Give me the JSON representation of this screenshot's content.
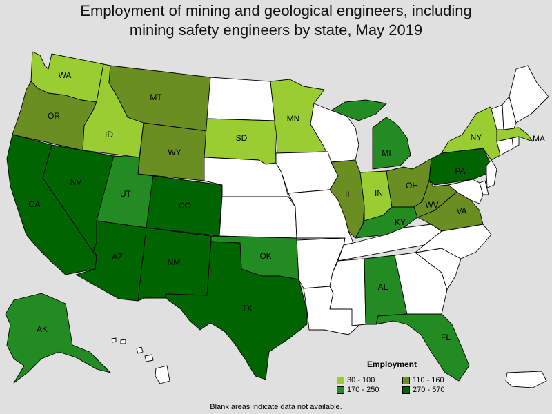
{
  "title_line1": "Employment of mining and geological engineers, including",
  "title_line2": "mining safety engineers by state, May 2019",
  "legend": {
    "title": "Employment",
    "items": [
      {
        "label": "30 - 100",
        "color": "#9acd32"
      },
      {
        "label": "110 - 160",
        "color": "#6b8e23"
      },
      {
        "label": "170 - 250",
        "color": "#228b22"
      },
      {
        "label": "270 - 570",
        "color": "#006400"
      }
    ]
  },
  "note": "Blank areas indicate data not available.",
  "colors": {
    "blank": "#ffffff",
    "c1": "#9acd32",
    "c2": "#6b8e23",
    "c3": "#228b22",
    "c4": "#006400",
    "background": "#e0e0e0"
  },
  "states": [
    {
      "abbr": "WA",
      "cls": "c1"
    },
    {
      "abbr": "OR",
      "cls": "c2"
    },
    {
      "abbr": "CA",
      "cls": "c4"
    },
    {
      "abbr": "ID",
      "cls": "c1"
    },
    {
      "abbr": "NV",
      "cls": "c4"
    },
    {
      "abbr": "MT",
      "cls": "c2"
    },
    {
      "abbr": "WY",
      "cls": "c2"
    },
    {
      "abbr": "UT",
      "cls": "c3"
    },
    {
      "abbr": "AZ",
      "cls": "c4"
    },
    {
      "abbr": "CO",
      "cls": "c4"
    },
    {
      "abbr": "NM",
      "cls": "c4"
    },
    {
      "abbr": "TX",
      "cls": "c4"
    },
    {
      "abbr": "OK",
      "cls": "c3"
    },
    {
      "abbr": "SD",
      "cls": "c1"
    },
    {
      "abbr": "MN",
      "cls": "c1"
    },
    {
      "abbr": "IL",
      "cls": "c2"
    },
    {
      "abbr": "IN",
      "cls": "c1"
    },
    {
      "abbr": "MI",
      "cls": "c3"
    },
    {
      "abbr": "OH",
      "cls": "c2"
    },
    {
      "abbr": "KY",
      "cls": "c3"
    },
    {
      "abbr": "WV",
      "cls": "c2"
    },
    {
      "abbr": "VA",
      "cls": "c2"
    },
    {
      "abbr": "PA",
      "cls": "c4"
    },
    {
      "abbr": "NY",
      "cls": "c1"
    },
    {
      "abbr": "MA",
      "cls": "c1"
    },
    {
      "abbr": "AL",
      "cls": "c3"
    },
    {
      "abbr": "FL",
      "cls": "c3"
    },
    {
      "abbr": "AK",
      "cls": "c3"
    },
    {
      "abbr": "ND",
      "cls": "blank"
    },
    {
      "abbr": "NE",
      "cls": "blank"
    },
    {
      "abbr": "KS",
      "cls": "blank"
    },
    {
      "abbr": "IA",
      "cls": "blank"
    },
    {
      "abbr": "MO",
      "cls": "blank"
    },
    {
      "abbr": "AR",
      "cls": "blank"
    },
    {
      "abbr": "LA",
      "cls": "blank"
    },
    {
      "abbr": "WI",
      "cls": "blank"
    },
    {
      "abbr": "TN",
      "cls": "blank"
    },
    {
      "abbr": "MS",
      "cls": "blank"
    },
    {
      "abbr": "GA",
      "cls": "blank"
    },
    {
      "abbr": "SC",
      "cls": "blank"
    },
    {
      "abbr": "NC",
      "cls": "blank"
    },
    {
      "abbr": "MD",
      "cls": "blank"
    },
    {
      "abbr": "DE",
      "cls": "blank"
    },
    {
      "abbr": "NJ",
      "cls": "blank"
    },
    {
      "abbr": "CT",
      "cls": "blank"
    },
    {
      "abbr": "RI",
      "cls": "blank"
    },
    {
      "abbr": "VT",
      "cls": "blank"
    },
    {
      "abbr": "NH",
      "cls": "blank"
    },
    {
      "abbr": "ME",
      "cls": "blank"
    },
    {
      "abbr": "HI",
      "cls": "blank"
    },
    {
      "abbr": "PR",
      "cls": "blank"
    }
  ]
}
